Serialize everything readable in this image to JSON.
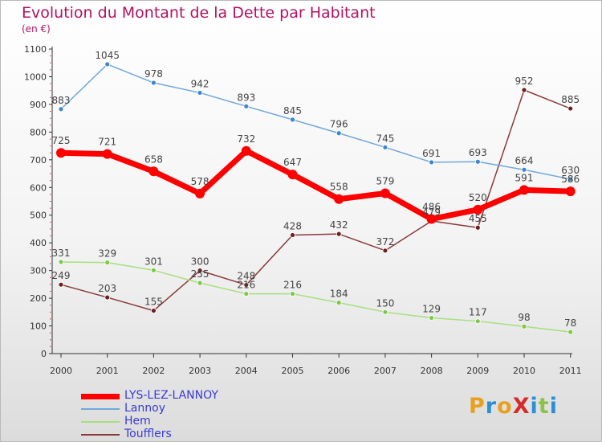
{
  "title": "Evolution du Montant de la Dette par Habitant",
  "subtitle": "(en €)",
  "logo": {
    "text": "ProXiti",
    "letters": [
      {
        "ch": "P",
        "color": "#e8a020"
      },
      {
        "ch": "r",
        "color": "#2b8fd6"
      },
      {
        "ch": "o",
        "color": "#e8a020"
      },
      {
        "ch": "X",
        "color": "#d62b2b"
      },
      {
        "ch": "i",
        "color": "#2b8fd6"
      },
      {
        "ch": "t",
        "color": "#8bc34a"
      },
      {
        "ch": "i",
        "color": "#2b8fd6"
      }
    ]
  },
  "chart_data": {
    "type": "line",
    "x": [
      "2000",
      "2001",
      "2002",
      "2003",
      "2004",
      "2005",
      "2006",
      "2007",
      "2008",
      "2009",
      "2010",
      "2011"
    ],
    "ylim": [
      0,
      1100
    ],
    "yticks": [
      0,
      100,
      200,
      300,
      400,
      500,
      600,
      700,
      800,
      900,
      1000,
      1100
    ],
    "grid": false,
    "legend_position": "bottom-left",
    "series": [
      {
        "name": "LYS-LEZ-LANNOY",
        "color": "#ff0000",
        "marker": "#ff0000",
        "width": 7,
        "r": 6,
        "values": [
          725,
          721,
          658,
          578,
          732,
          647,
          558,
          579,
          486,
          520,
          591,
          586
        ],
        "labels": [
          "725",
          "721",
          "658",
          "578",
          "732",
          "647",
          "558",
          "579",
          "486",
          "520",
          "591",
          "586"
        ]
      },
      {
        "name": "Lannoy",
        "color": "#6fa8dc",
        "marker": "#3f87c8",
        "width": 1.5,
        "r": 3,
        "values": [
          883,
          1045,
          978,
          942,
          893,
          845,
          796,
          745,
          691,
          693,
          664,
          630
        ],
        "labels": [
          "883",
          "1045",
          "978",
          "942",
          "893",
          "845",
          "796",
          "745",
          "691",
          "693",
          "664",
          "630"
        ]
      },
      {
        "name": "Hem",
        "color": "#a6e07a",
        "marker": "#7cc84a",
        "width": 1.5,
        "r": 3,
        "values": [
          331,
          329,
          301,
          255,
          216,
          216,
          184,
          150,
          129,
          117,
          98,
          78
        ],
        "labels": [
          "331",
          "329",
          "301",
          "255",
          "216",
          "216",
          "184",
          "150",
          "129",
          "117",
          "98",
          "78"
        ]
      },
      {
        "name": "Toufflers",
        "color": "#8b3a3a",
        "marker": "#6e1f1f",
        "width": 1.5,
        "r": 3,
        "values": [
          249,
          203,
          155,
          300,
          248,
          428,
          432,
          372,
          479,
          455,
          952,
          885
        ],
        "labels": [
          "249",
          "203",
          "155",
          "300",
          "248",
          "428",
          "432",
          "372",
          "479",
          "455",
          "952",
          "885"
        ]
      }
    ]
  }
}
